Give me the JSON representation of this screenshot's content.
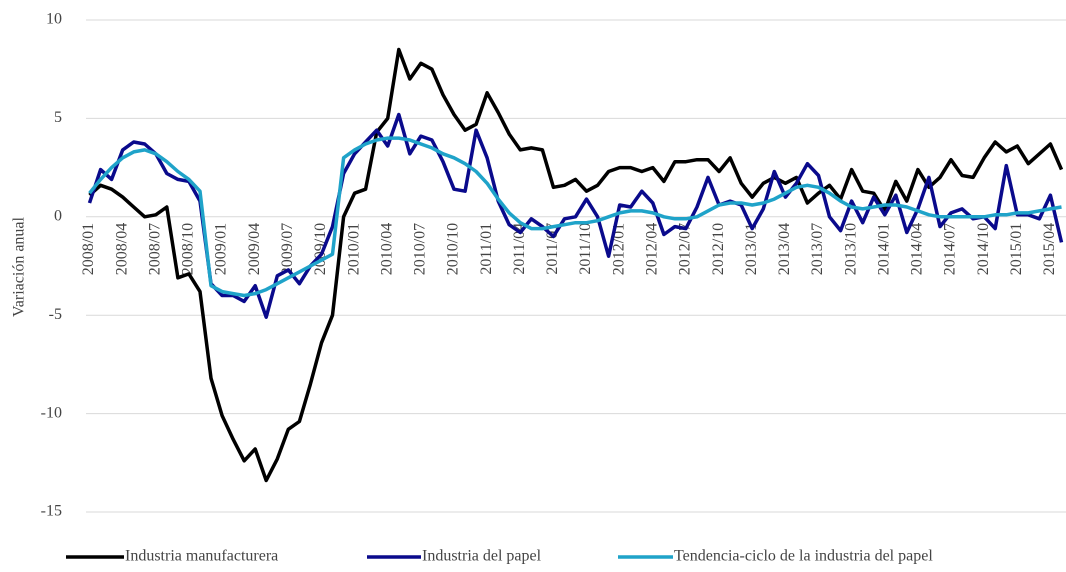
{
  "chart_data": {
    "type": "line",
    "ylabel": "Variación anual",
    "categories": [
      "2008/01",
      null,
      null,
      "2008/04",
      null,
      null,
      "2008/07",
      null,
      null,
      "2008/10",
      null,
      null,
      "2009/01",
      null,
      null,
      "2009/04",
      null,
      null,
      "2009/07",
      null,
      null,
      "2009/10",
      null,
      null,
      "2010/01",
      null,
      null,
      "2010/04",
      null,
      null,
      "2010/07",
      null,
      null,
      "2010/10",
      null,
      null,
      "2011/01",
      null,
      null,
      "2011/04",
      null,
      null,
      "2011/07",
      null,
      null,
      "2011/10",
      null,
      null,
      "2012/01",
      null,
      null,
      "2012/04",
      null,
      null,
      "2012/07",
      null,
      null,
      "2012/10",
      null,
      null,
      "2013/01",
      null,
      null,
      "2013/04",
      null,
      null,
      "2013/07",
      null,
      null,
      "2013/10",
      null,
      null,
      "2014/01",
      null,
      null,
      "2014/04",
      null,
      null,
      "2014/07",
      null,
      null,
      "2014/10",
      null,
      null,
      "2015/01",
      null,
      null,
      "2015/04",
      null
    ],
    "series": [
      {
        "name": "Industria manufacturera",
        "color": "#000000",
        "values": [
          1.1,
          1.6,
          1.4,
          1.0,
          0.5,
          0.0,
          0.1,
          0.5,
          -3.1,
          -2.9,
          -3.8,
          -8.2,
          -10.1,
          -11.3,
          -12.4,
          -11.8,
          -13.4,
          -12.3,
          -10.8,
          -10.4,
          -8.5,
          -6.4,
          -5.0,
          0.0,
          1.2,
          1.4,
          4.3,
          5.0,
          8.5,
          7.0,
          7.8,
          7.5,
          6.2,
          5.2,
          4.4,
          4.7,
          6.3,
          5.3,
          4.2,
          3.4,
          3.5,
          3.4,
          1.5,
          1.6,
          1.9,
          1.3,
          1.6,
          2.3,
          2.5,
          2.5,
          2.3,
          2.5,
          1.8,
          2.8,
          2.8,
          2.9,
          2.9,
          2.3,
          3.0,
          1.7,
          1.0,
          1.7,
          2.0,
          1.7,
          2.0,
          0.7,
          1.2,
          1.6,
          0.9,
          2.4,
          1.3,
          1.2,
          0.3,
          1.8,
          0.8,
          2.4,
          1.5,
          2.0,
          2.9,
          2.1,
          2.0,
          3.0,
          3.8,
          3.3,
          3.6,
          2.7,
          3.2,
          3.7,
          2.4
        ]
      },
      {
        "name": "Industria del papel",
        "color": "#0a0a8c",
        "values": [
          0.7,
          2.4,
          1.9,
          3.4,
          3.8,
          3.7,
          3.2,
          2.2,
          1.9,
          1.8,
          0.8,
          -3.4,
          -4.0,
          -4.0,
          -4.3,
          -3.5,
          -5.1,
          -3.0,
          -2.7,
          -3.4,
          -2.5,
          -1.9,
          -0.5,
          2.2,
          3.2,
          3.8,
          4.4,
          3.6,
          5.2,
          3.2,
          4.1,
          3.9,
          2.8,
          1.4,
          1.3,
          4.4,
          3.0,
          0.8,
          -0.4,
          -0.8,
          -0.1,
          -0.5,
          -1.0,
          -0.1,
          0.0,
          0.9,
          0.0,
          -2.0,
          0.6,
          0.5,
          1.3,
          0.7,
          -0.9,
          -0.5,
          -0.6,
          0.5,
          2.0,
          0.6,
          0.8,
          0.6,
          -0.6,
          0.4,
          2.3,
          1.0,
          1.7,
          2.7,
          2.1,
          0.0,
          -0.7,
          0.8,
          -0.3,
          1.0,
          0.1,
          1.1,
          -0.8,
          0.4,
          2.0,
          -0.5,
          0.2,
          0.4,
          -0.1,
          0.0,
          -0.6,
          2.6,
          0.1,
          0.1,
          -0.1,
          1.1,
          -1.3
        ]
      },
      {
        "name": "Tendencia-ciclo de la industria del papel",
        "color": "#1fa3c9",
        "values": [
          1.2,
          1.9,
          2.5,
          3.0,
          3.3,
          3.4,
          3.2,
          2.8,
          2.3,
          1.9,
          1.3,
          -3.5,
          -3.8,
          -3.9,
          -4.0,
          -3.9,
          -3.7,
          -3.4,
          -3.1,
          -2.8,
          -2.5,
          -2.2,
          -1.9,
          3.0,
          3.4,
          3.7,
          3.9,
          4.0,
          4.0,
          3.9,
          3.7,
          3.5,
          3.2,
          3.0,
          2.7,
          2.3,
          1.7,
          0.9,
          0.2,
          -0.3,
          -0.6,
          -0.6,
          -0.5,
          -0.4,
          -0.3,
          -0.3,
          -0.2,
          0.0,
          0.2,
          0.3,
          0.3,
          0.2,
          0.0,
          -0.1,
          -0.1,
          0.0,
          0.3,
          0.6,
          0.7,
          0.7,
          0.6,
          0.7,
          0.9,
          1.2,
          1.5,
          1.6,
          1.5,
          1.2,
          0.8,
          0.5,
          0.4,
          0.5,
          0.6,
          0.6,
          0.5,
          0.3,
          0.1,
          0.0,
          0.0,
          0.0,
          0.0,
          0.0,
          0.1,
          0.1,
          0.2,
          0.2,
          0.3,
          0.4,
          0.5
        ]
      }
    ],
    "ylim": [
      -15,
      10
    ],
    "yticks": [
      -15,
      -10,
      -5,
      0,
      5,
      10
    ],
    "grid": true,
    "legend": "bottom"
  }
}
